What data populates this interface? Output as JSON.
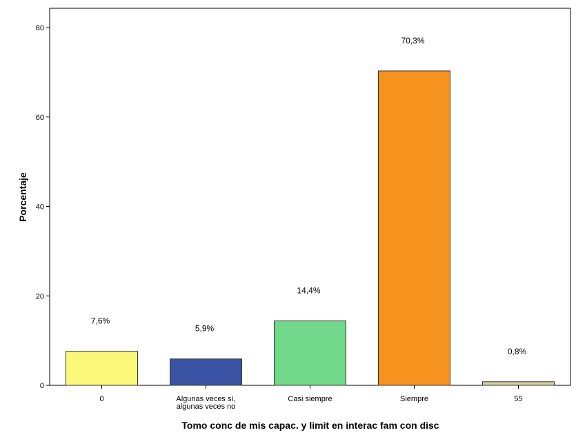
{
  "chart_data": {
    "type": "bar",
    "xlabel": "Tomo conc de mis capac. y limit en interac fam con disc",
    "ylabel": "Porcentaje",
    "ylim": [
      0,
      80
    ],
    "yticks": [
      "0",
      "20",
      "40",
      "60",
      "80"
    ],
    "grid": false,
    "categories": [
      [
        "0"
      ],
      [
        "Algunas veces sí,",
        "algunas veces no"
      ],
      [
        "Casi siempre"
      ],
      [
        "Siempre"
      ],
      [
        "55"
      ]
    ],
    "values": [
      7.6,
      5.9,
      14.4,
      70.3,
      0.8
    ],
    "data_labels": [
      "7,6%",
      "5,9%",
      "14,4%",
      "70,3%",
      "0,8%"
    ],
    "colors": [
      "#fbf779",
      "#3a53a4",
      "#71d88a",
      "#f6931f",
      "#d4cf9c"
    ]
  }
}
